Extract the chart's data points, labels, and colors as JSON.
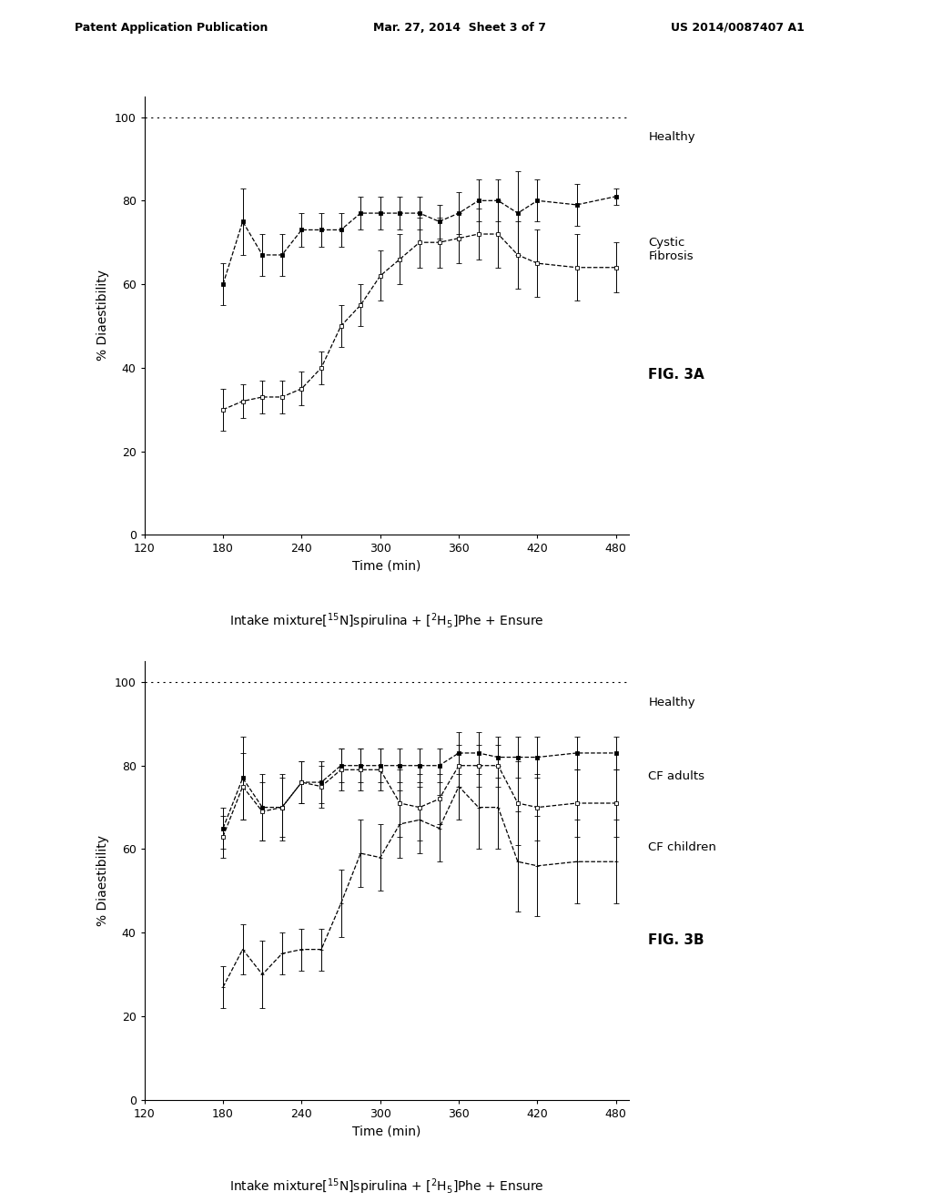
{
  "fig3a": {
    "healthy": {
      "x": [
        180,
        195,
        210,
        225,
        240,
        255,
        270,
        285,
        300,
        315,
        330,
        345,
        360,
        375,
        390,
        405,
        420,
        450,
        480
      ],
      "y": [
        60,
        75,
        67,
        67,
        73,
        73,
        73,
        77,
        77,
        77,
        77,
        75,
        77,
        80,
        80,
        77,
        80,
        79,
        81
      ],
      "yerr_lo": [
        5,
        8,
        5,
        5,
        4,
        4,
        4,
        4,
        4,
        4,
        4,
        4,
        5,
        5,
        5,
        10,
        5,
        5,
        2
      ],
      "yerr_hi": [
        5,
        8,
        5,
        5,
        4,
        4,
        4,
        4,
        4,
        4,
        4,
        4,
        5,
        5,
        5,
        10,
        5,
        5,
        2
      ]
    },
    "cystic_fibrosis": {
      "x": [
        180,
        195,
        210,
        225,
        240,
        255,
        270,
        285,
        300,
        315,
        330,
        345,
        360,
        375,
        390,
        405,
        420,
        450,
        480
      ],
      "y": [
        30,
        32,
        33,
        33,
        35,
        40,
        50,
        55,
        62,
        66,
        70,
        70,
        71,
        72,
        72,
        67,
        65,
        64,
        64
      ],
      "yerr_lo": [
        5,
        4,
        4,
        4,
        4,
        4,
        5,
        5,
        6,
        6,
        6,
        6,
        6,
        6,
        8,
        8,
        8,
        8,
        6
      ],
      "yerr_hi": [
        5,
        4,
        4,
        4,
        4,
        4,
        5,
        5,
        6,
        6,
        6,
        6,
        6,
        6,
        8,
        8,
        8,
        8,
        6
      ]
    }
  },
  "fig3b": {
    "healthy": {
      "x": [
        180,
        195,
        210,
        225,
        240,
        255,
        270,
        285,
        300,
        315,
        330,
        345,
        360,
        375,
        390,
        405,
        420,
        450,
        480
      ],
      "y": [
        65,
        77,
        70,
        70,
        76,
        76,
        80,
        80,
        80,
        80,
        80,
        80,
        83,
        83,
        82,
        82,
        82,
        83,
        83
      ],
      "yerr_lo": [
        5,
        10,
        8,
        8,
        5,
        5,
        4,
        4,
        4,
        4,
        4,
        4,
        5,
        5,
        5,
        5,
        5,
        4,
        4
      ],
      "yerr_hi": [
        5,
        10,
        8,
        8,
        5,
        5,
        4,
        4,
        4,
        4,
        4,
        4,
        5,
        5,
        5,
        5,
        5,
        4,
        4
      ]
    },
    "cf_adults": {
      "x": [
        180,
        195,
        210,
        225,
        240,
        255,
        270,
        285,
        300,
        315,
        330,
        345,
        360,
        375,
        390,
        405,
        420,
        450,
        480
      ],
      "y": [
        63,
        75,
        69,
        70,
        76,
        75,
        79,
        79,
        79,
        71,
        70,
        72,
        80,
        80,
        80,
        71,
        70,
        71,
        71
      ],
      "yerr_lo": [
        5,
        8,
        7,
        7,
        5,
        5,
        5,
        5,
        5,
        8,
        8,
        6,
        5,
        5,
        5,
        10,
        8,
        8,
        8
      ],
      "yerr_hi": [
        5,
        8,
        7,
        7,
        5,
        5,
        5,
        5,
        5,
        8,
        8,
        6,
        5,
        5,
        5,
        10,
        8,
        8,
        8
      ]
    },
    "cf_children": {
      "x": [
        180,
        195,
        210,
        225,
        240,
        255,
        270,
        285,
        300,
        315,
        330,
        345,
        360,
        375,
        390,
        405,
        420,
        450,
        480
      ],
      "y": [
        27,
        36,
        30,
        35,
        36,
        36,
        47,
        59,
        58,
        66,
        67,
        65,
        75,
        70,
        70,
        57,
        56,
        57,
        57
      ],
      "yerr_lo": [
        5,
        6,
        8,
        5,
        5,
        5,
        8,
        8,
        8,
        8,
        8,
        8,
        8,
        10,
        10,
        12,
        12,
        10,
        10
      ],
      "yerr_hi": [
        5,
        6,
        8,
        5,
        5,
        5,
        8,
        8,
        8,
        8,
        8,
        8,
        8,
        10,
        10,
        12,
        12,
        10,
        10
      ]
    }
  },
  "xlabel": "Time (min)",
  "ylabel": "% Diaestibility",
  "xlim": [
    120,
    490
  ],
  "ylim": [
    0,
    105
  ],
  "xticks": [
    120,
    180,
    240,
    300,
    360,
    420,
    480
  ],
  "yticks": [
    0,
    20,
    40,
    60,
    80,
    100
  ],
  "fig3a_label": "FIG. 3A",
  "fig3b_label": "FIG. 3B",
  "header_left": "Patent Application Publication",
  "header_mid": "Mar. 27, 2014  Sheet 3 of 7",
  "header_right": "US 2014/0087407 A1"
}
